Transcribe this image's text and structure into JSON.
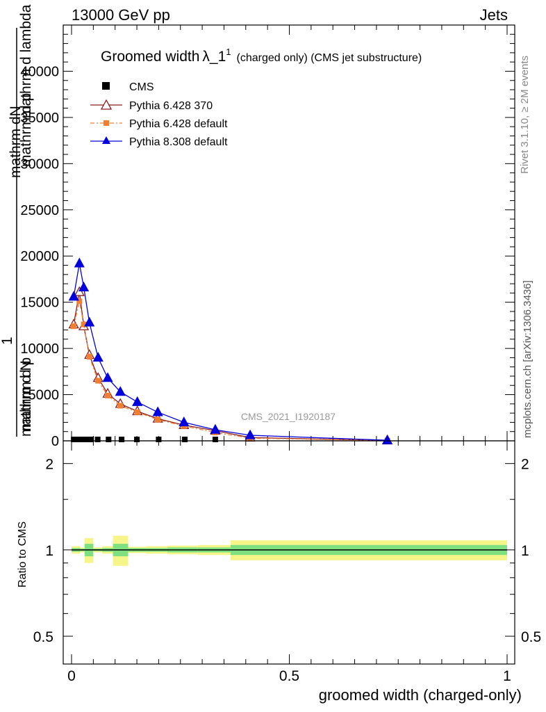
{
  "header": {
    "energy": "13000 GeV pp",
    "category": "Jets"
  },
  "side_labels": {
    "rivet": "Rivet 3.1.10, ≥ 2M events",
    "mcplots": "mcplots.cern.ch [arXiv:1306.3436]"
  },
  "watermark": "CMS_2021_I1920187",
  "chart_data": [
    {
      "type": "line",
      "title": "Groomed width",
      "title_symbol": "λ_1",
      "title_superscript": "1",
      "title_note": "(charged only) (CMS jet substructure)",
      "ylabel_lines": [
        "mathrm dN",
        "mathrm d p",
        "mathrm d p",
        "mathrm d lambda",
        "1",
        "mathrm d N"
      ],
      "ylabel": "1 / mathrm dN  ·  mathrm d N / mathrm d p_T mathrm d lambda",
      "xlim": [
        0,
        1
      ],
      "ylim": [
        0,
        45000
      ],
      "y_ticks": [
        0,
        5000,
        10000,
        15000,
        20000,
        25000,
        30000,
        35000,
        40000
      ],
      "y_tick_labels": [
        "0",
        "5000",
        "10000",
        "15000",
        "20000",
        "25000",
        "30000",
        "35000",
        "40000"
      ],
      "legend": [
        {
          "name": "CMS",
          "color": "#000000",
          "marker": "square"
        },
        {
          "name": "Pythia 6.428 370",
          "color": "#8b1a1a",
          "marker": "open-triangle"
        },
        {
          "name": "Pythia 6.428 default",
          "color": "#f08030",
          "marker": "filled-square",
          "dash": true
        },
        {
          "name": "Pythia 8.308 default",
          "color": "#0000dd",
          "marker": "filled-triangle"
        }
      ],
      "cms_x": [
        0.005,
        0.015,
        0.025,
        0.035,
        0.045,
        0.06,
        0.085,
        0.115,
        0.15,
        0.2,
        0.26,
        0.33
      ],
      "cms_y": [
        0,
        0,
        0,
        0,
        0,
        0,
        0,
        0,
        0,
        0,
        0,
        0
      ],
      "series": [
        {
          "name": "Pythia 6.428 370",
          "x": [
            0.005,
            0.018,
            0.028,
            0.041,
            0.061,
            0.083,
            0.112,
            0.151,
            0.198,
            0.258,
            0.33,
            0.41,
            0.725
          ],
          "y": [
            12600,
            16100,
            12400,
            9300,
            6800,
            5100,
            4000,
            3200,
            2400,
            1700,
            1100,
            350,
            40
          ]
        },
        {
          "name": "Pythia 6.428 default",
          "x": [
            0.005,
            0.018,
            0.028,
            0.041,
            0.061,
            0.083,
            0.112,
            0.151,
            0.198,
            0.258,
            0.33,
            0.41,
            0.725
          ],
          "y": [
            12400,
            15100,
            12600,
            9100,
            6500,
            4900,
            3800,
            3100,
            2300,
            1600,
            900,
            280,
            30
          ]
        },
        {
          "name": "Pythia 8.308 default",
          "x": [
            0.005,
            0.018,
            0.028,
            0.041,
            0.061,
            0.083,
            0.112,
            0.151,
            0.198,
            0.258,
            0.33,
            0.41,
            0.725
          ],
          "y": [
            15600,
            19200,
            16600,
            12800,
            9000,
            6800,
            5300,
            4200,
            3100,
            2000,
            1200,
            600,
            60
          ]
        }
      ]
    },
    {
      "type": "area",
      "ylabel": "Ratio to CMS",
      "xlabel": "groomed width (charged-only)",
      "xlim": [
        0,
        1
      ],
      "ylog": true,
      "ylim": [
        0.4,
        2.4
      ],
      "y_ticks": [
        0.5,
        1,
        2
      ],
      "y_tick_labels": [
        "0.5",
        "1",
        "2"
      ],
      "x_ticks": [
        0,
        0.5,
        1
      ],
      "x_tick_labels": [
        "0",
        "0.5",
        "1"
      ],
      "reference": 1,
      "bands": [
        {
          "x0": 0.0,
          "x1": 0.02,
          "stat": 0.015,
          "syst": 0.03
        },
        {
          "x0": 0.02,
          "x1": 0.03,
          "stat": 0.01,
          "syst": 0.02
        },
        {
          "x0": 0.03,
          "x1": 0.05,
          "stat": 0.05,
          "syst": 0.1
        },
        {
          "x0": 0.05,
          "x1": 0.07,
          "stat": 0.01,
          "syst": 0.02
        },
        {
          "x0": 0.07,
          "x1": 0.095,
          "stat": 0.015,
          "syst": 0.03
        },
        {
          "x0": 0.095,
          "x1": 0.13,
          "stat": 0.05,
          "syst": 0.12
        },
        {
          "x0": 0.13,
          "x1": 0.17,
          "stat": 0.015,
          "syst": 0.025
        },
        {
          "x0": 0.17,
          "x1": 0.22,
          "stat": 0.015,
          "syst": 0.03
        },
        {
          "x0": 0.22,
          "x1": 0.29,
          "stat": 0.02,
          "syst": 0.035
        },
        {
          "x0": 0.29,
          "x1": 0.365,
          "stat": 0.02,
          "syst": 0.04
        },
        {
          "x0": 0.365,
          "x1": 1.0,
          "stat": 0.04,
          "syst": 0.08
        }
      ]
    }
  ]
}
